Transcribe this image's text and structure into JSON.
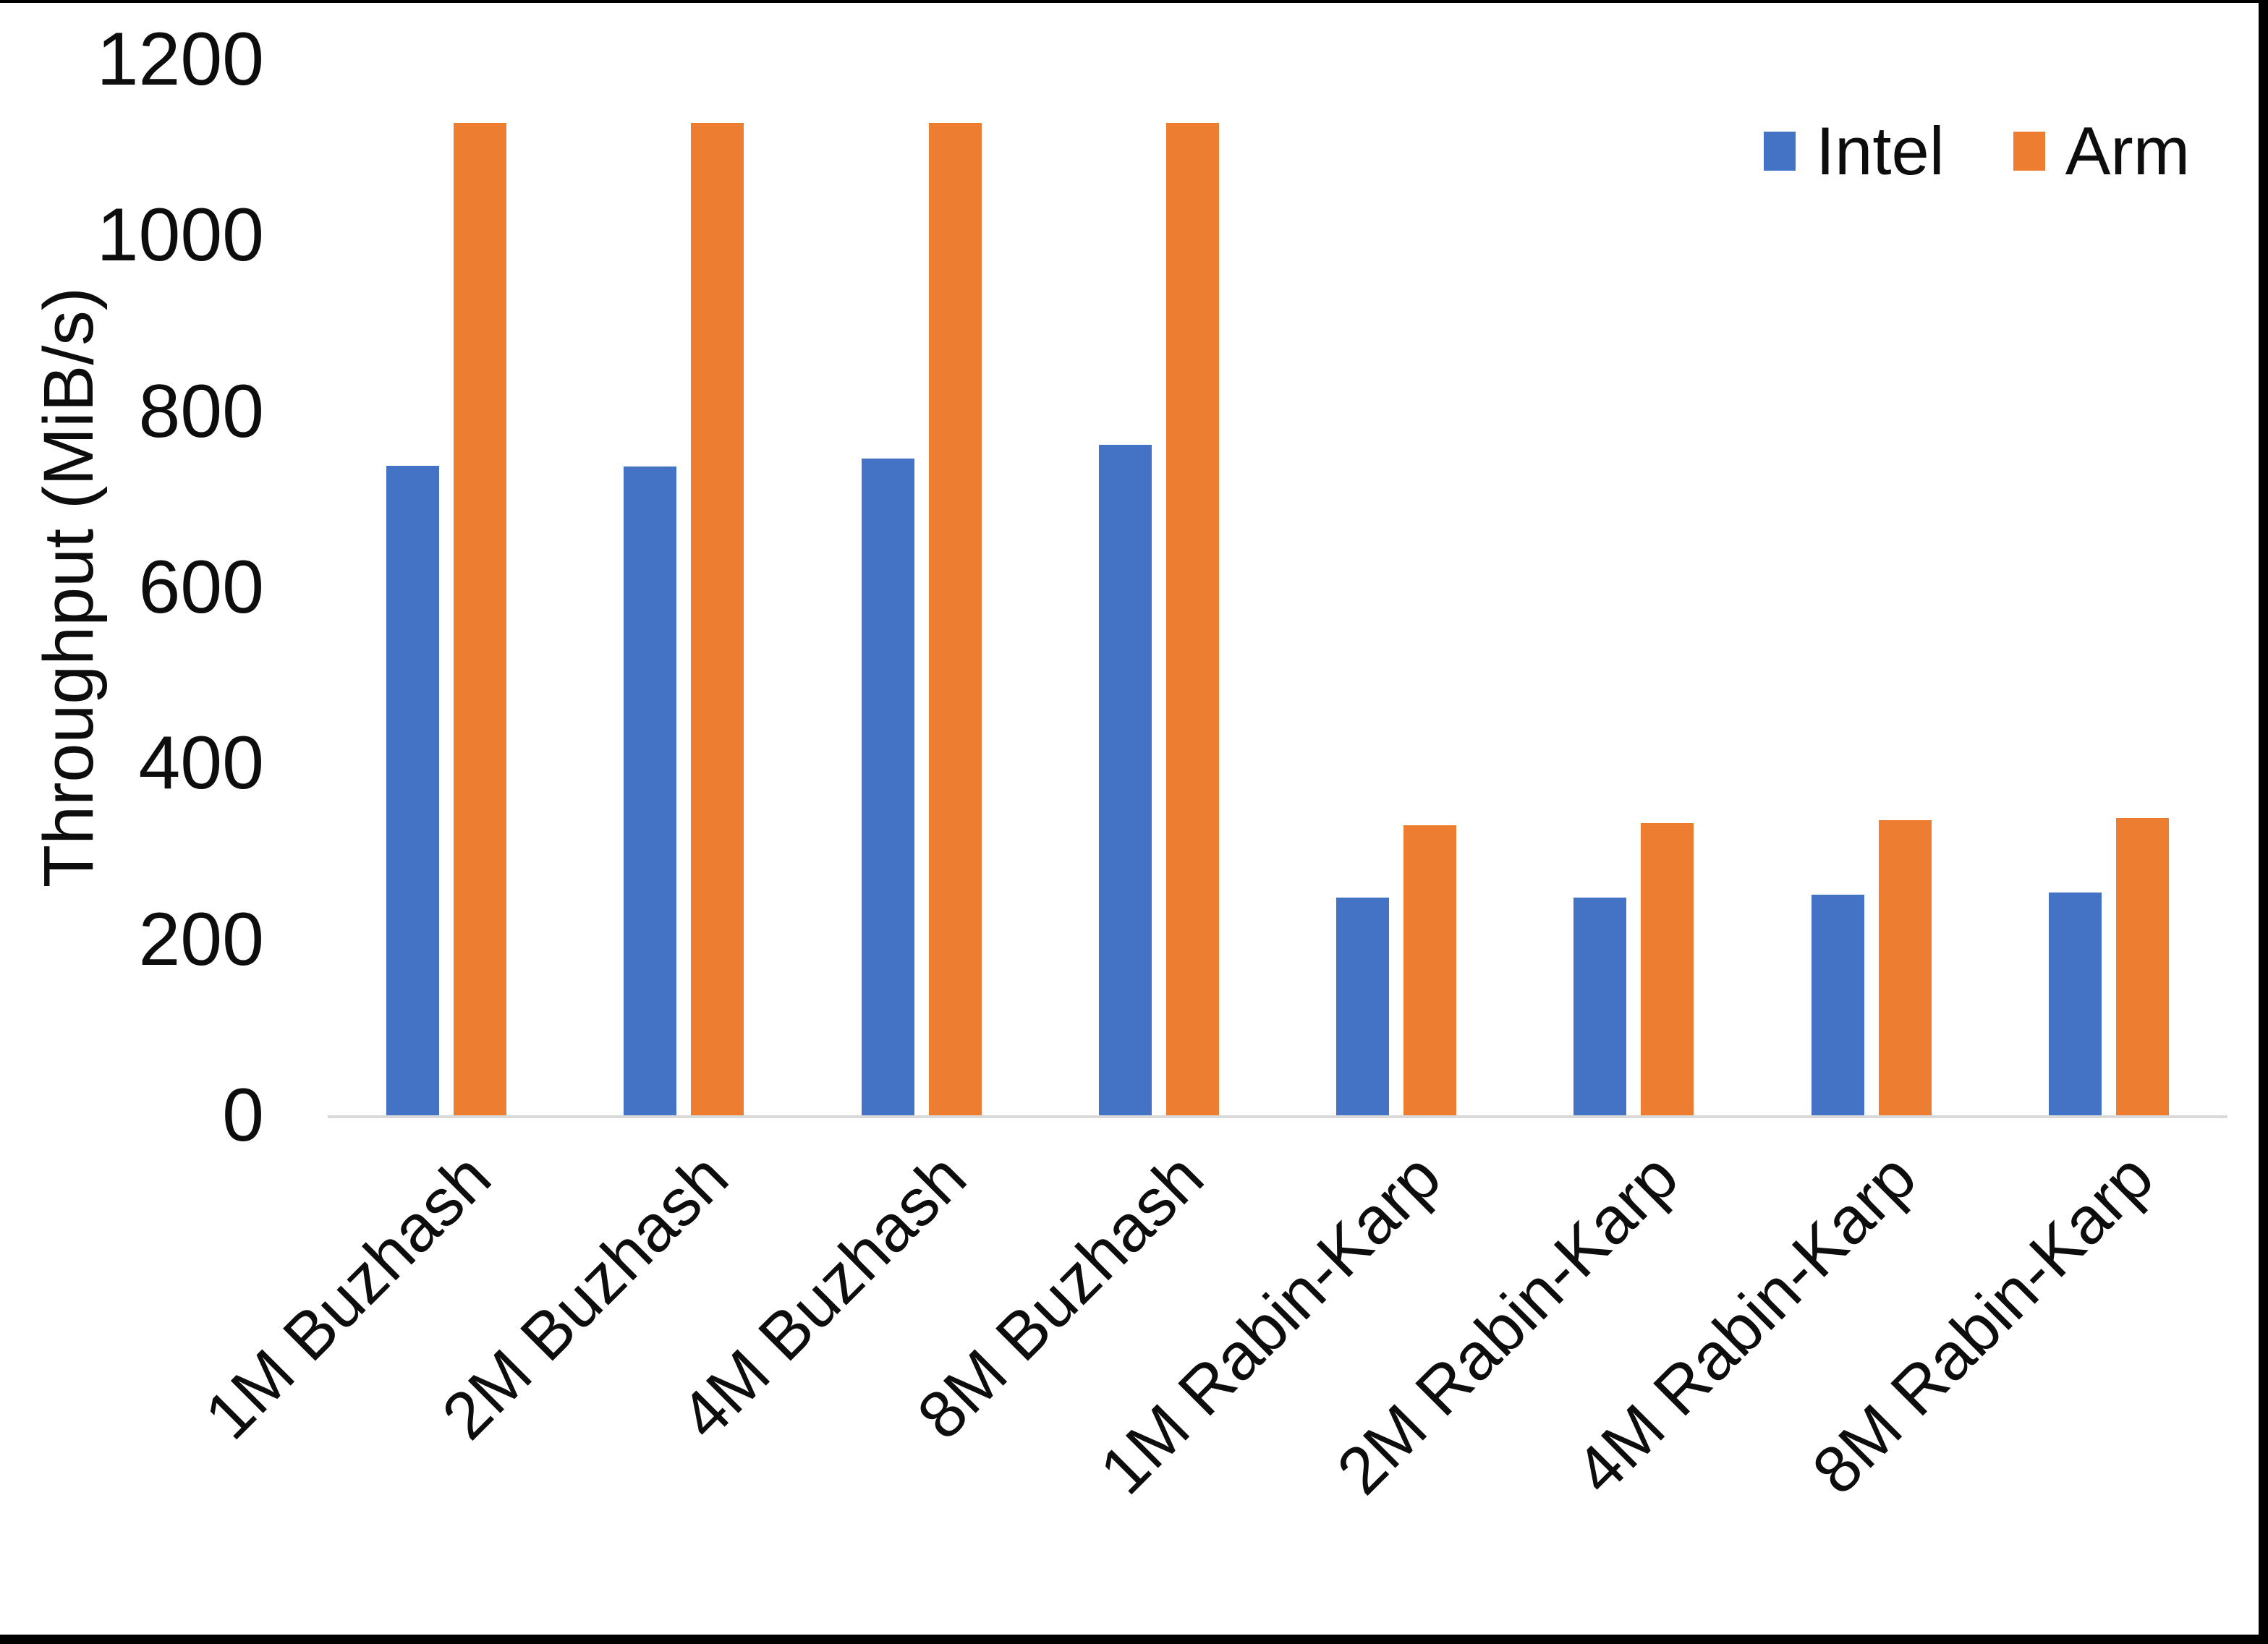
{
  "chart_data": {
    "type": "bar",
    "title": "",
    "categories": [
      "1M Buzhash",
      "2M Buzhash",
      "4M Buzhash",
      "8M Buzhash",
      "1M Rabin-Karp",
      "2M Rabin-Karp",
      "4M Rabin-Karp",
      "8M Rabin-Karp"
    ],
    "series": [
      {
        "name": "Intel",
        "color": "#4472C4",
        "values": [
          738,
          737,
          746,
          762,
          247,
          247,
          251,
          253
        ]
      },
      {
        "name": "Arm",
        "color": "#ED7D31",
        "values": [
          1128,
          1128,
          1128,
          1128,
          330,
          332,
          335,
          338
        ]
      }
    ],
    "xlabel": "",
    "ylabel": "Throughput (MiB/s)",
    "ylim": [
      0,
      1200
    ],
    "yticks": [
      0,
      200,
      400,
      600,
      800,
      1000,
      1200
    ],
    "grid": false,
    "legend_position": "top-right",
    "axis_line_color": "#D9D9D9",
    "text_color": "#0D0D0D"
  }
}
